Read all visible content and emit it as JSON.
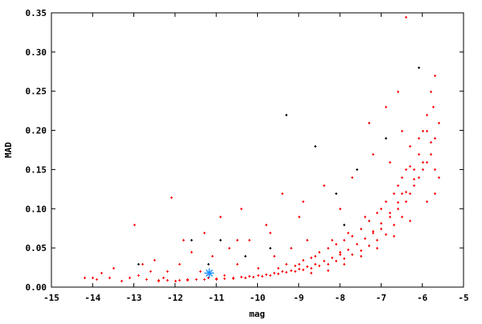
{
  "chart_data": {
    "type": "scatter",
    "title": "",
    "xlabel": "mag",
    "ylabel": "MAD",
    "xlim": [
      -15,
      -5
    ],
    "ylim": [
      0,
      0.35
    ],
    "xticks": [
      "-15",
      "-14",
      "-13",
      "-12",
      "-11",
      "-10",
      "-9",
      "-8",
      "-7",
      "-6",
      "-5"
    ],
    "yticks": [
      "0.00",
      "0.05",
      "0.10",
      "0.15",
      "0.20",
      "0.25",
      "0.30",
      "0.35"
    ],
    "grid": false,
    "legend": "none",
    "series": [
      {
        "color": "#ff0000",
        "marker": "plus",
        "points": [
          [
            -14.2,
            0.012
          ],
          [
            -14.0,
            0.012
          ],
          [
            -13.9,
            0.01
          ],
          [
            -13.8,
            0.018
          ],
          [
            -13.6,
            0.012
          ],
          [
            -13.5,
            0.025
          ],
          [
            -13.3,
            0.008
          ],
          [
            -13.1,
            0.012
          ],
          [
            -13.0,
            0.08
          ],
          [
            -12.9,
            0.015
          ],
          [
            -12.8,
            0.03
          ],
          [
            -12.7,
            0.01
          ],
          [
            -12.6,
            0.02
          ],
          [
            -12.5,
            0.035
          ],
          [
            -12.4,
            0.008
          ],
          [
            -12.3,
            0.012
          ],
          [
            -12.2,
            0.02
          ],
          [
            -12.1,
            0.115
          ],
          [
            -12.0,
            0.008
          ],
          [
            -11.9,
            0.03
          ],
          [
            -11.8,
            0.06
          ],
          [
            -11.7,
            0.009
          ],
          [
            -11.6,
            0.045
          ],
          [
            -11.5,
            0.01
          ],
          [
            -11.4,
            0.02
          ],
          [
            -11.3,
            0.07
          ],
          [
            -11.2,
            0.012
          ],
          [
            -11.1,
            0.04
          ],
          [
            -11.0,
            0.01
          ],
          [
            -10.9,
            0.09
          ],
          [
            -10.8,
            0.015
          ],
          [
            -10.7,
            0.05
          ],
          [
            -10.6,
            0.011
          ],
          [
            -10.5,
            0.03
          ],
          [
            -10.4,
            0.1
          ],
          [
            -10.3,
            0.012
          ],
          [
            -10.2,
            0.06
          ],
          [
            -10.1,
            0.013
          ],
          [
            -10.0,
            0.025
          ],
          [
            -9.9,
            0.014
          ],
          [
            -9.8,
            0.08
          ],
          [
            -9.7,
            0.015
          ],
          [
            -9.6,
            0.04
          ],
          [
            -9.5,
            0.017
          ],
          [
            -9.4,
            0.12
          ],
          [
            -9.3,
            0.019
          ],
          [
            -9.2,
            0.05
          ],
          [
            -9.1,
            0.02
          ],
          [
            -9.0,
            0.03
          ],
          [
            -9.0,
            0.09
          ],
          [
            -8.9,
            0.023
          ],
          [
            -8.8,
            0.06
          ],
          [
            -8.7,
            0.025
          ],
          [
            -8.6,
            0.04
          ],
          [
            -8.5,
            0.028
          ],
          [
            -8.4,
            0.13
          ],
          [
            -8.3,
            0.03
          ],
          [
            -8.2,
            0.06
          ],
          [
            -8.1,
            0.034
          ],
          [
            -8.0,
            0.045
          ],
          [
            -8.0,
            0.1
          ],
          [
            -7.9,
            0.037
          ],
          [
            -7.8,
            0.07
          ],
          [
            -7.7,
            0.042
          ],
          [
            -7.6,
            0.055
          ],
          [
            -7.5,
            0.047
          ],
          [
            -7.4,
            0.09
          ],
          [
            -7.3,
            0.053
          ],
          [
            -7.2,
            0.07
          ],
          [
            -7.2,
            0.17
          ],
          [
            -7.1,
            0.06
          ],
          [
            -7.0,
            0.075
          ],
          [
            -7.0,
            0.1
          ],
          [
            -6.9,
            0.068
          ],
          [
            -6.8,
            0.09
          ],
          [
            -6.8,
            0.16
          ],
          [
            -6.7,
            0.08
          ],
          [
            -6.6,
            0.1
          ],
          [
            -6.6,
            0.13
          ],
          [
            -6.5,
            0.09
          ],
          [
            -6.5,
            0.12
          ],
          [
            -6.4,
            0.11
          ],
          [
            -6.4,
            0.15
          ],
          [
            -6.4,
            0.345
          ],
          [
            -6.3,
            0.12
          ],
          [
            -6.3,
            0.18
          ],
          [
            -6.2,
            0.13
          ],
          [
            -6.2,
            0.15
          ],
          [
            -6.1,
            0.14
          ],
          [
            -6.1,
            0.17
          ],
          [
            -6.0,
            0.15
          ],
          [
            -6.0,
            0.2
          ],
          [
            -5.9,
            0.16
          ],
          [
            -5.9,
            0.22
          ],
          [
            -5.8,
            0.17
          ],
          [
            -5.8,
            0.25
          ],
          [
            -5.7,
            0.19
          ],
          [
            -5.7,
            0.27
          ],
          [
            -5.7,
            0.12
          ],
          [
            -5.6,
            0.21
          ],
          [
            -5.6,
            0.14
          ],
          [
            -12.4,
            0.009
          ],
          [
            -12.2,
            0.009
          ],
          [
            -11.9,
            0.009
          ],
          [
            -11.7,
            0.01
          ],
          [
            -11.5,
            0.01
          ],
          [
            -11.3,
            0.01
          ],
          [
            -11.0,
            0.011
          ],
          [
            -10.8,
            0.011
          ],
          [
            -10.6,
            0.012
          ],
          [
            -10.4,
            0.013
          ],
          [
            -10.2,
            0.014
          ],
          [
            -10.0,
            0.015
          ],
          [
            -9.8,
            0.016
          ],
          [
            -9.6,
            0.018
          ],
          [
            -9.4,
            0.02
          ],
          [
            -9.2,
            0.022
          ],
          [
            -9.0,
            0.024
          ],
          [
            -8.8,
            0.027
          ],
          [
            -8.6,
            0.03
          ],
          [
            -8.4,
            0.034
          ],
          [
            -8.2,
            0.038
          ],
          [
            -8.0,
            0.042
          ],
          [
            -7.8,
            0.048
          ],
          [
            -7.6,
            0.055
          ],
          [
            -7.4,
            0.062
          ],
          [
            -7.2,
            0.072
          ],
          [
            -7.0,
            0.082
          ],
          [
            -6.8,
            0.095
          ],
          [
            -6.6,
            0.108
          ],
          [
            -6.4,
            0.122
          ],
          [
            -6.2,
            0.138
          ],
          [
            -6.0,
            0.16
          ],
          [
            -5.8,
            0.185
          ],
          [
            -9.5,
            0.025
          ],
          [
            -9.3,
            0.03
          ],
          [
            -9.1,
            0.028
          ],
          [
            -8.9,
            0.035
          ],
          [
            -8.7,
            0.038
          ],
          [
            -8.5,
            0.045
          ],
          [
            -8.3,
            0.05
          ],
          [
            -8.1,
            0.055
          ],
          [
            -7.9,
            0.06
          ],
          [
            -7.7,
            0.065
          ],
          [
            -7.5,
            0.075
          ],
          [
            -7.3,
            0.085
          ],
          [
            -7.1,
            0.095
          ],
          [
            -6.9,
            0.11
          ],
          [
            -6.7,
            0.12
          ],
          [
            -6.5,
            0.14
          ],
          [
            -6.3,
            0.155
          ],
          [
            -6.1,
            0.19
          ],
          [
            -5.9,
            0.2
          ],
          [
            -5.75,
            0.23
          ],
          [
            -8.7,
            0.018
          ],
          [
            -8.3,
            0.022
          ],
          [
            -7.9,
            0.03
          ],
          [
            -7.5,
            0.04
          ],
          [
            -7.1,
            0.05
          ],
          [
            -6.7,
            0.065
          ],
          [
            -6.3,
            0.085
          ],
          [
            -5.9,
            0.11
          ],
          [
            -5.7,
            0.15
          ],
          [
            -7.3,
            0.21
          ],
          [
            -7.7,
            0.14
          ],
          [
            -8.9,
            0.11
          ],
          [
            -9.7,
            0.07
          ],
          [
            -10.5,
            0.06
          ],
          [
            -6.9,
            0.23
          ],
          [
            -6.5,
            0.2
          ],
          [
            -6.6,
            0.25
          ]
        ]
      },
      {
        "color": "#000000",
        "marker": "plus",
        "points": [
          [
            -9.3,
            0.22
          ],
          [
            -6.1,
            0.28
          ],
          [
            -10.9,
            0.06
          ],
          [
            -8.6,
            0.18
          ],
          [
            -7.6,
            0.15
          ],
          [
            -11.6,
            0.06
          ],
          [
            -9.7,
            0.05
          ],
          [
            -12.9,
            0.03
          ],
          [
            -6.9,
            0.19
          ],
          [
            -8.1,
            0.12
          ],
          [
            -10.3,
            0.04
          ],
          [
            -11.2,
            0.03
          ],
          [
            -7.9,
            0.08
          ]
        ]
      },
      {
        "color": "#1e90ff",
        "marker": "star",
        "points": [
          [
            -11.18,
            0.018
          ]
        ]
      }
    ]
  }
}
